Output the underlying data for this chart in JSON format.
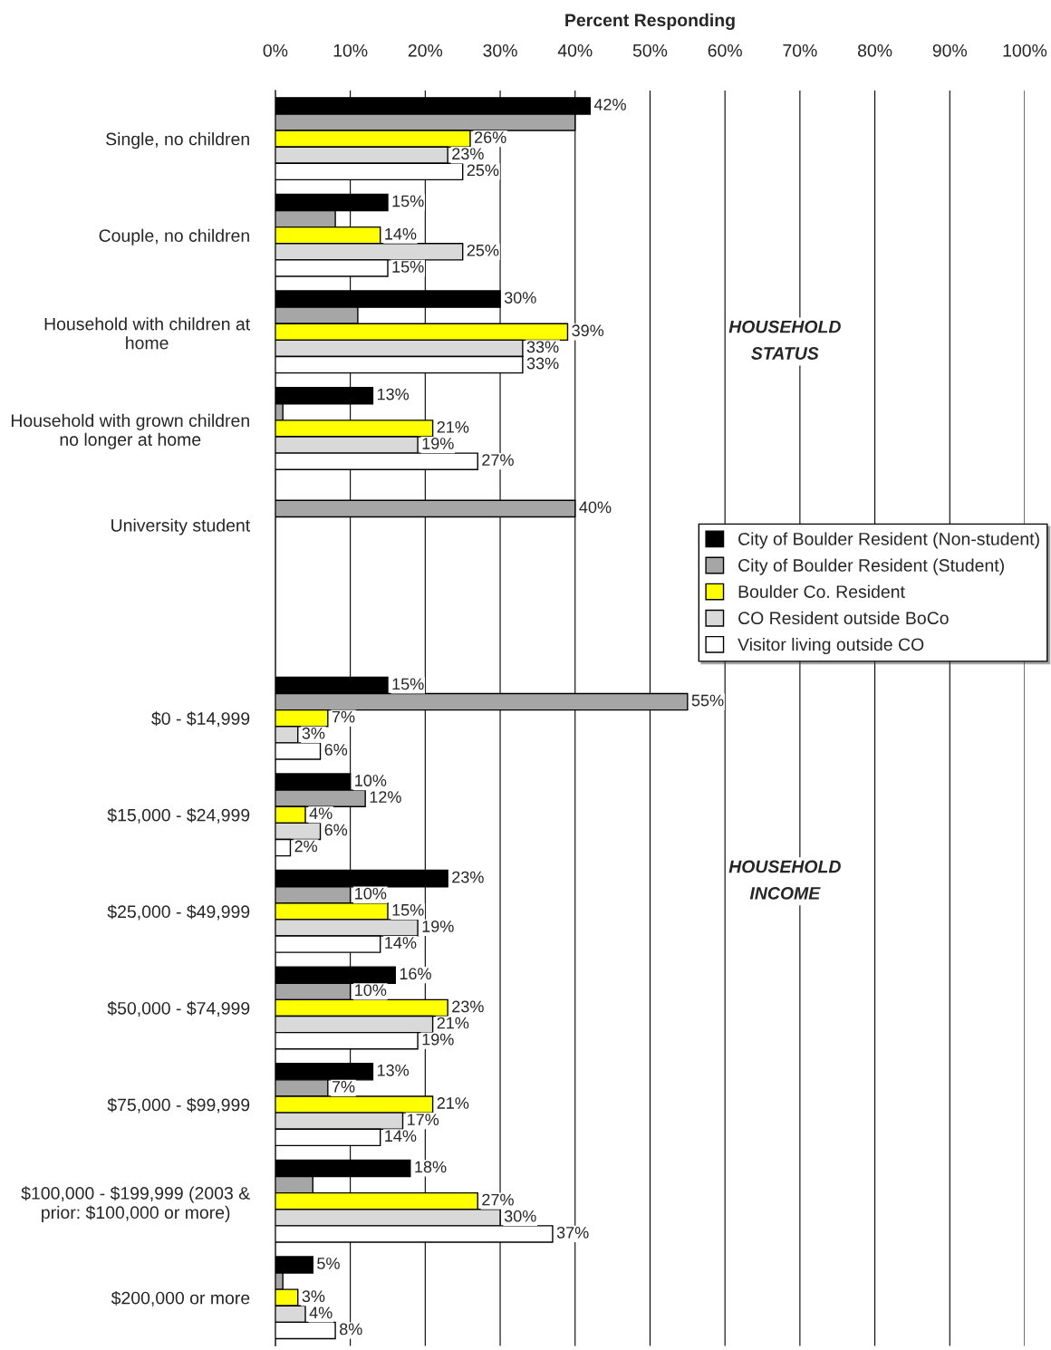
{
  "chart_data": {
    "type": "bar",
    "orientation": "horizontal",
    "xlabel": "Percent Responding",
    "categories": [
      "Single, no children",
      "Couple, no children",
      "Household with children at\nhome",
      "Household with grown children\nno longer at home",
      "University student",
      null,
      "$0 - $14,999",
      "$15,000 - $24,999",
      "$25,000 - $49,999",
      "$50,000 - $74,999",
      "$75,000 - $99,999",
      "$100,000 - $199,999 (2003 &\nprior: $100,000 or more)",
      "$200,000 or more"
    ],
    "series": [
      {
        "name": "City of Boulder Resident (Non-student)",
        "color": "#000000",
        "values": [
          42,
          15,
          30,
          13,
          null,
          null,
          15,
          10,
          23,
          16,
          13,
          18,
          5
        ],
        "value_labels": [
          "42%",
          "15%",
          "30%",
          "13%",
          null,
          null,
          "15%",
          "10%",
          "23%",
          "16%",
          "13%",
          "18%",
          "5%"
        ]
      },
      {
        "name": "City of Boulder Resident (Student)",
        "color": "#a6a6a6",
        "values": [
          40,
          8,
          11,
          1,
          40,
          null,
          55,
          12,
          10,
          10,
          7,
          5,
          1
        ],
        "value_labels": [
          null,
          null,
          null,
          null,
          "40%",
          null,
          "55%",
          "12%",
          "10%",
          "10%",
          "7%",
          null,
          null
        ]
      },
      {
        "name": "Boulder Co. Resident",
        "color": "#ffff00",
        "values": [
          26,
          14,
          39,
          21,
          null,
          null,
          7,
          4,
          15,
          23,
          21,
          27,
          3
        ],
        "value_labels": [
          "26%",
          "14%",
          "39%",
          "21%",
          null,
          null,
          "7%",
          "4%",
          "15%",
          "23%",
          "21%",
          "27%",
          "3%"
        ]
      },
      {
        "name": "CO Resident outside BoCo",
        "color": "#d9d9d9",
        "values": [
          23,
          25,
          33,
          19,
          null,
          null,
          3,
          6,
          19,
          21,
          17,
          30,
          4
        ],
        "value_labels": [
          "23%",
          "25%",
          "33%",
          "19%",
          null,
          null,
          "3%",
          "6%",
          "19%",
          "21%",
          "17%",
          "30%",
          "4%"
        ]
      },
      {
        "name": "Visitor living outside CO",
        "color": "#ffffff",
        "values": [
          25,
          15,
          33,
          27,
          null,
          null,
          6,
          2,
          14,
          19,
          14,
          37,
          8
        ],
        "value_labels": [
          "25%",
          "15%",
          "33%",
          "27%",
          null,
          null,
          "6%",
          "2%",
          "14%",
          "19%",
          "14%",
          "37%",
          "8%"
        ]
      }
    ],
    "xlim": [
      0,
      100
    ],
    "xticks": [
      {
        "value": 0,
        "label": "0%"
      },
      {
        "value": 10,
        "label": "10%"
      },
      {
        "value": 20,
        "label": "20%"
      },
      {
        "value": 30,
        "label": "30%"
      },
      {
        "value": 40,
        "label": "40%"
      },
      {
        "value": 50,
        "label": "50%"
      },
      {
        "value": 60,
        "label": "60%"
      },
      {
        "value": 70,
        "label": "70%"
      },
      {
        "value": 80,
        "label": "80%"
      },
      {
        "value": 90,
        "label": "90%"
      },
      {
        "value": 100,
        "label": "100%"
      }
    ],
    "grid": "x",
    "legend": "right",
    "annotations": [
      "HOUSEHOLD\nSTATUS",
      "HOUSEHOLD\nINCOME"
    ]
  }
}
